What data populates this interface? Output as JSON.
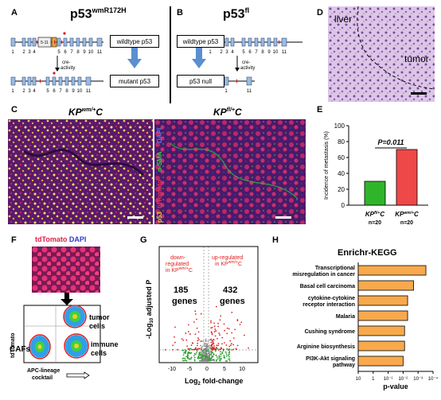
{
  "panelA": {
    "label": "A",
    "title": "p53",
    "title_sup": "wmR172H",
    "top_numbers": [
      "1",
      "2",
      "3",
      "4",
      "5",
      "6",
      "7",
      "8",
      "9",
      "10",
      "11"
    ],
    "mini_box": "5-11",
    "cre": "cre-",
    "cre2": "activity",
    "wildtype": "wildtype p53",
    "mutant": "mutant p53"
  },
  "panelB": {
    "label": "B",
    "title": "p53",
    "title_sup": "fl",
    "wildtype": "wildtype p53",
    "null": "p53 null",
    "cre": "cre-",
    "cre2": "activity",
    "nums_bottom": [
      "1",
      "11"
    ]
  },
  "panelD": {
    "label": "D",
    "liver": "liver",
    "tumor": "tumor"
  },
  "panelC": {
    "label": "C",
    "left_title": "KP",
    "left_sup": "wm/+",
    "left_suffix": "C",
    "right_title": "KP",
    "right_sup": "fl/+",
    "right_suffix": "C",
    "legend_dapi": "DAPI",
    "legend_sma": "α-SMA",
    "legend_tdtomato": "tdTomato",
    "legend_p53": "p53"
  },
  "panelE": {
    "label": "E",
    "pvalue": "P=0.011",
    "ylabel": "Incidence of metastasis (%)",
    "n_left": "n=20",
    "n_right": "n=20"
  },
  "chart_data": [
    {
      "type": "bar",
      "categories": [
        "KPfl/+C",
        "KPwm/+C"
      ],
      "values": [
        30,
        70
      ],
      "ylabel": "Incidence of metastasis (%)",
      "ylim": [
        0,
        100
      ],
      "yticks": [
        0,
        20,
        40,
        60,
        80,
        100
      ],
      "colors": [
        "#2fb52a",
        "#ef4848"
      ]
    },
    {
      "type": "bar",
      "categories": [
        "Transcriptional misregulation in cancer",
        "Basal cell carcinoma",
        "cytokine-cytokine receptor interaction",
        "Malaria",
        "Cushing syndrome",
        "Arginine biosynthesis",
        "PI3K-Akt signaling pathway"
      ],
      "values": [
        0.0003,
        0.002,
        0.005,
        0.005,
        0.008,
        0.008,
        0.01
      ],
      "xlabel": "p-value",
      "log_scale": true,
      "reversed": true,
      "xticks": [
        "10",
        "1",
        "10⁻¹",
        "10⁻²",
        "10⁻³",
        "10⁻⁴"
      ],
      "title": "Enrichr-KEGG",
      "color": "#f7a94c"
    }
  ],
  "panelF": {
    "label": "F",
    "top_title_td": "tdTomato",
    "top_title_dapi": "DAPI",
    "tumor_cells": "tumor cells",
    "cafs": "CAFs",
    "immune_cells": "immune cells",
    "ylabel": "tdTomato",
    "xlabel1": "APC-lineage",
    "xlabel2": "cocktail"
  },
  "panelG": {
    "label": "G",
    "down_text": [
      "down-",
      "regulated",
      "in KP",
      "C"
    ],
    "down_sup": "wm/+",
    "up_text": [
      "up-regulated",
      "in KP",
      "C"
    ],
    "up_sup": "wm/+",
    "down_count": "185",
    "up_count": "432",
    "genes": "genes",
    "ylabel": "-Log",
    "ylabel_sub": "10",
    "ylabel_rest": " adjusted P",
    "xlabel": "Log",
    "xlabel_sub": "2",
    "xlabel_rest": " fold-change",
    "xticks": [
      "-10",
      "-5",
      "0",
      "5",
      "10"
    ]
  },
  "panelH": {
    "label": "H",
    "title": "Enrichr-KEGG",
    "xlabel": "p-value",
    "terms": [
      [
        "Transcriptional",
        "misregulation in cancer"
      ],
      [
        "Basal cell carcinoma"
      ],
      [
        "cytokine-cytokine",
        "receptor interaction"
      ],
      [
        "Malaria"
      ],
      [
        "Cushing syndrome"
      ],
      [
        "Arginine biosynthesis"
      ],
      [
        "PI3K-Akt signaling",
        "pathway"
      ]
    ]
  }
}
